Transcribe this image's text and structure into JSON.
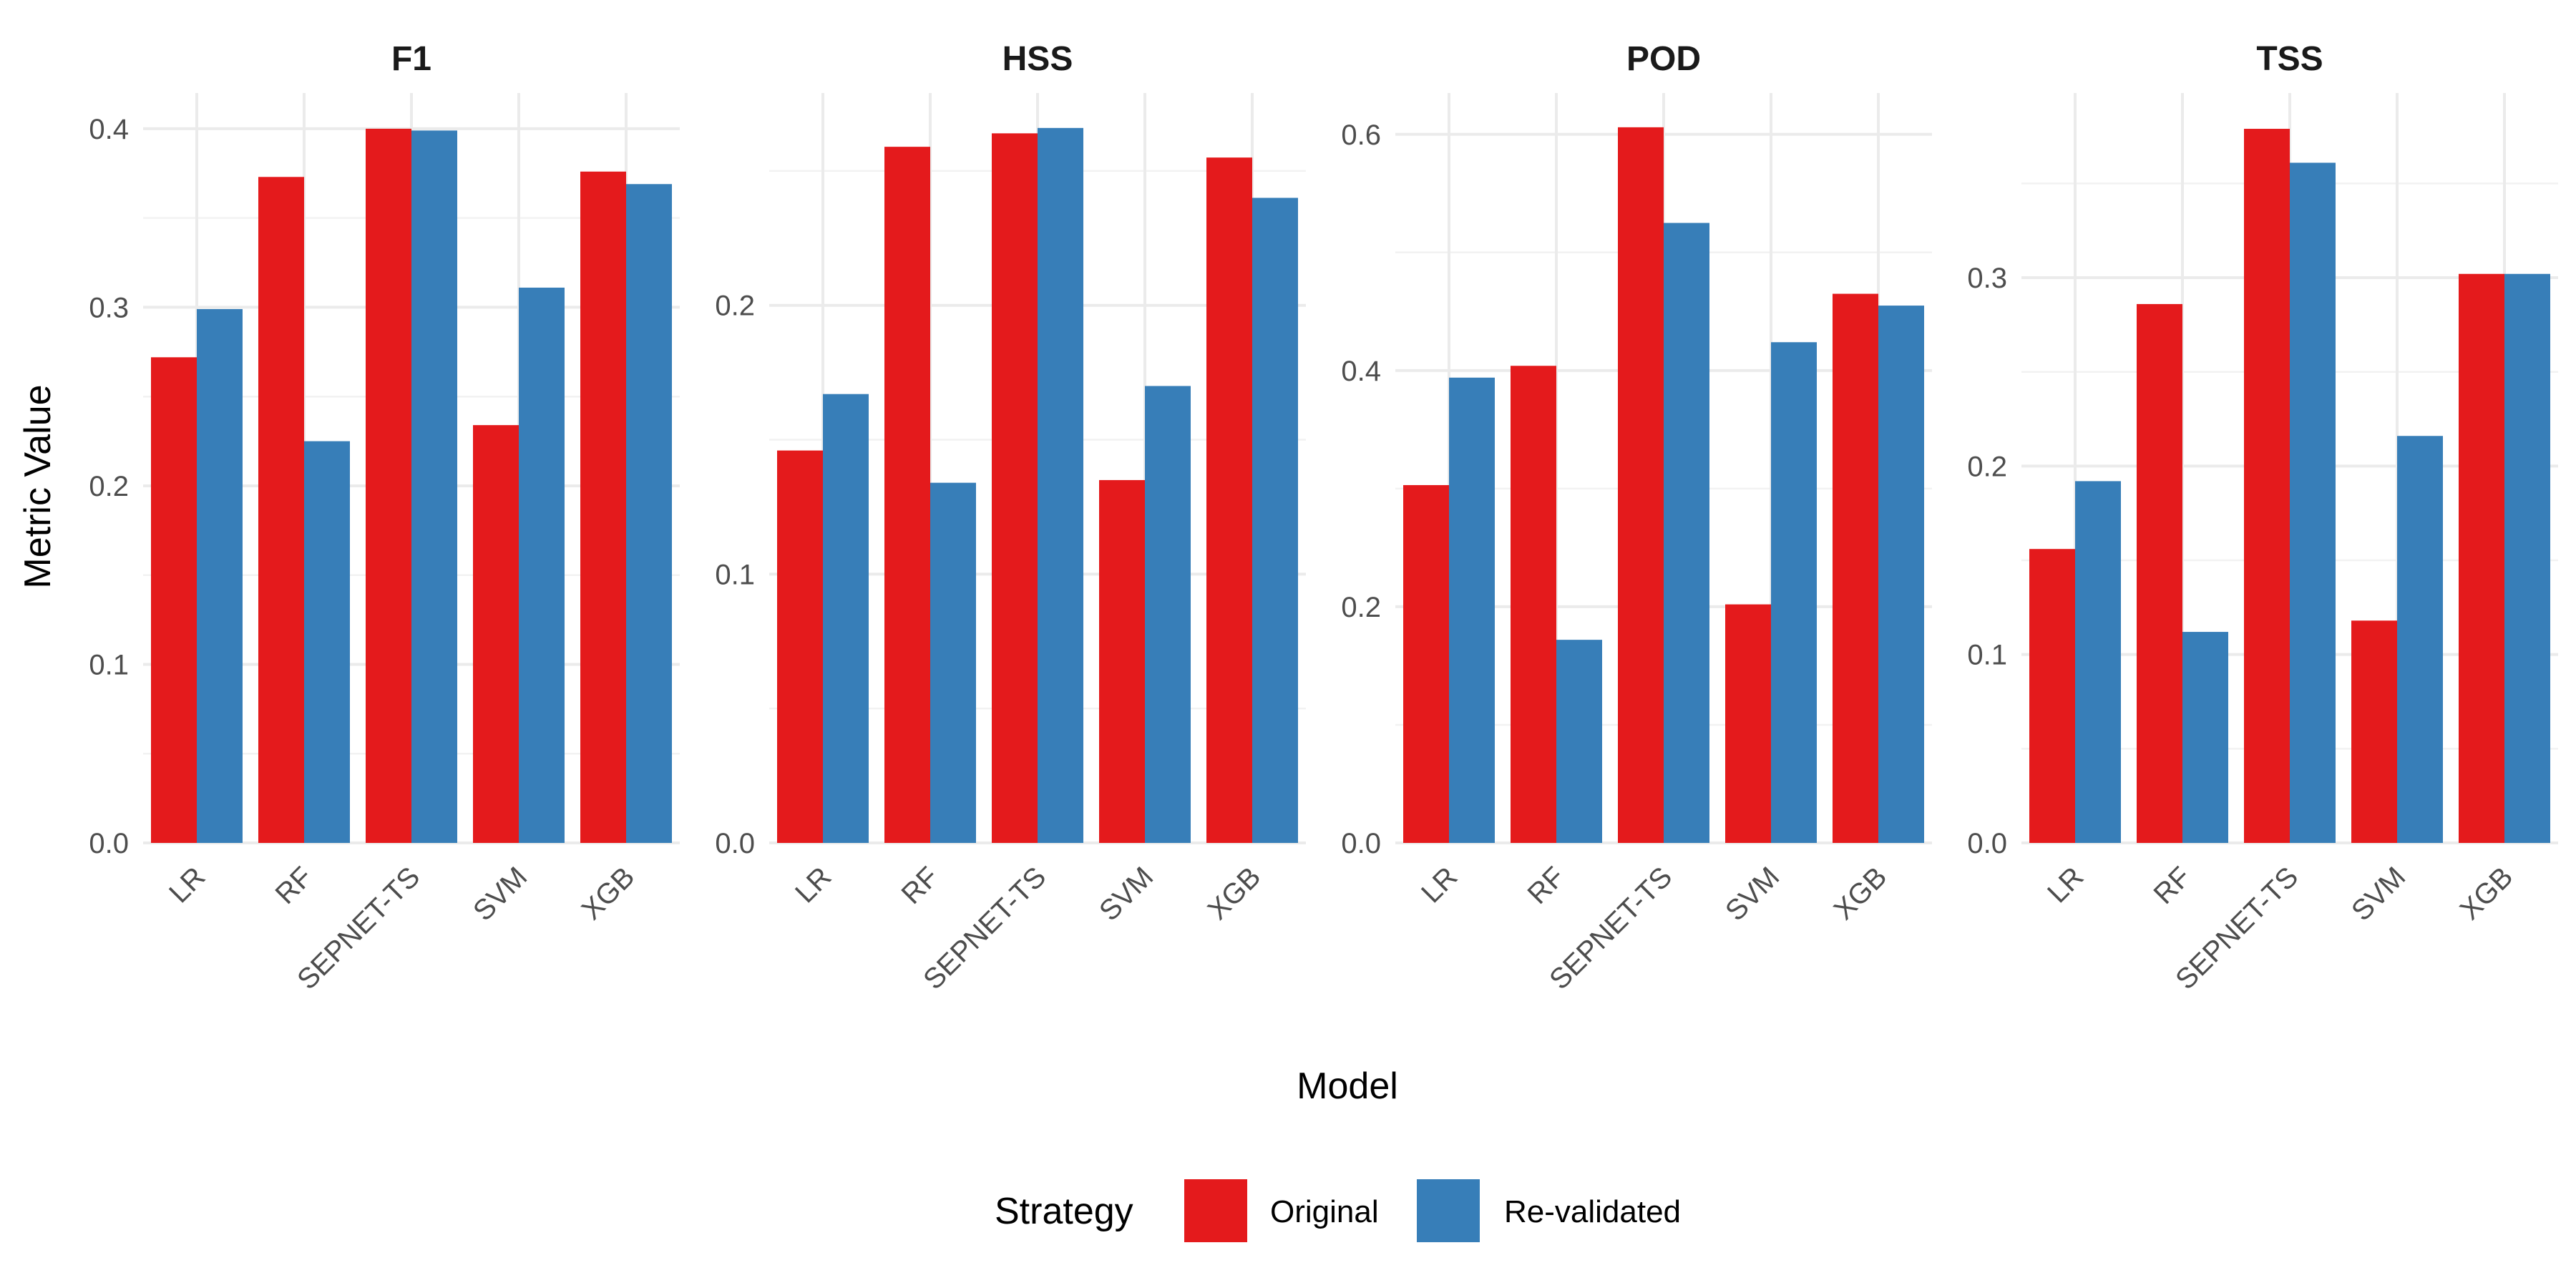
{
  "chart_data": {
    "type": "bar",
    "facet_by": "metric",
    "xlabel": "Model",
    "ylabel": "Metric Value",
    "categories": [
      "LR",
      "RF",
      "SEPNET-TS",
      "SVM",
      "XGB"
    ],
    "legend": {
      "title": "Strategy",
      "position": "bottom",
      "entries": [
        {
          "name": "Original",
          "color": "#E41A1C"
        },
        {
          "name": "Re-validated",
          "color": "#377EB8"
        }
      ]
    },
    "grid": true,
    "panels": [
      {
        "title": "F1",
        "ylim": [
          0,
          0.42
        ],
        "yticks": [
          0.0,
          0.1,
          0.2,
          0.3,
          0.4
        ],
        "ytick_labels": [
          "0.0",
          "0.1",
          "0.2",
          "0.3",
          "0.4"
        ],
        "series": [
          {
            "name": "Original",
            "values": [
              0.272,
              0.373,
              0.4,
              0.234,
              0.376
            ]
          },
          {
            "name": "Re-validated",
            "values": [
              0.299,
              0.225,
              0.399,
              0.311,
              0.369
            ]
          }
        ]
      },
      {
        "title": "HSS",
        "ylim": [
          0,
          0.279
        ],
        "yticks": [
          0.0,
          0.1,
          0.2
        ],
        "ytick_labels": [
          "0.0",
          "0.1",
          "0.2"
        ],
        "series": [
          {
            "name": "Original",
            "values": [
              0.146,
              0.259,
              0.264,
              0.135,
              0.255
            ]
          },
          {
            "name": "Re-validated",
            "values": [
              0.167,
              0.134,
              0.266,
              0.17,
              0.24
            ]
          }
        ]
      },
      {
        "title": "POD",
        "ylim": [
          0,
          0.635
        ],
        "yticks": [
          0.0,
          0.2,
          0.4,
          0.6
        ],
        "ytick_labels": [
          "0.0",
          "0.2",
          "0.4",
          "0.6"
        ],
        "series": [
          {
            "name": "Original",
            "values": [
              0.303,
              0.404,
              0.606,
              0.202,
              0.465
            ]
          },
          {
            "name": "Re-validated",
            "values": [
              0.394,
              0.172,
              0.525,
              0.424,
              0.455
            ]
          }
        ]
      },
      {
        "title": "TSS",
        "ylim": [
          0,
          0.398
        ],
        "yticks": [
          0.0,
          0.1,
          0.2,
          0.3
        ],
        "ytick_labels": [
          "0.0",
          "0.1",
          "0.2",
          "0.3"
        ],
        "series": [
          {
            "name": "Original",
            "values": [
              0.156,
              0.286,
              0.379,
              0.118,
              0.302
            ]
          },
          {
            "name": "Re-validated",
            "values": [
              0.192,
              0.112,
              0.361,
              0.216,
              0.302
            ]
          }
        ]
      }
    ]
  }
}
